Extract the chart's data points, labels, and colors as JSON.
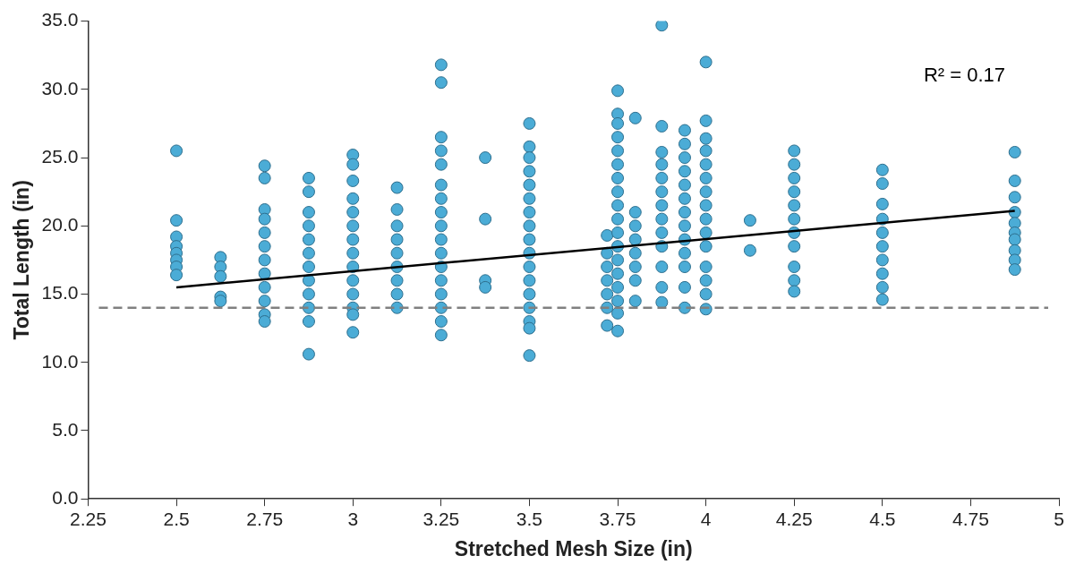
{
  "chart_data": {
    "type": "scatter",
    "xlabel": "Stretched Mesh Size (in)",
    "ylabel": "Total Length (in)",
    "xlim": [
      2.25,
      5
    ],
    "xticks": [
      2.25,
      2.5,
      2.75,
      3,
      3.25,
      3.5,
      3.75,
      4,
      4.25,
      4.5,
      4.75,
      5
    ],
    "ylim": [
      0,
      35
    ],
    "yticks": [
      {
        "value": 0,
        "label": "0.0"
      },
      {
        "value": 5,
        "label": "5.0"
      },
      {
        "value": 10,
        "label": "10.0"
      },
      {
        "value": 15,
        "label": "15.0"
      },
      {
        "value": 20,
        "label": "20.0"
      },
      {
        "value": 25,
        "label": "25.0"
      },
      {
        "value": 30,
        "label": "30.0"
      },
      {
        "value": 35,
        "label": "35.0"
      }
    ],
    "grid": false,
    "legend": false,
    "series": [
      {
        "marker": "circle",
        "color": "#4bacd6",
        "x": [
          2.5,
          2.5,
          2.5,
          2.5,
          2.5,
          2.5,
          2.5,
          2.5,
          2.625,
          2.625,
          2.625,
          2.625,
          2.625,
          2.75,
          2.75,
          2.75,
          2.75,
          2.75,
          2.75,
          2.75,
          2.75,
          2.75,
          2.75,
          2.75,
          2.75,
          2.875,
          2.875,
          2.875,
          2.875,
          2.875,
          2.875,
          2.875,
          2.875,
          2.875,
          2.875,
          2.875,
          2.875,
          3,
          3,
          3,
          3,
          3,
          3,
          3,
          3,
          3,
          3,
          3,
          3,
          3,
          3,
          3.125,
          3.125,
          3.125,
          3.125,
          3.125,
          3.125,
          3.125,
          3.125,
          3.125,
          3.25,
          3.25,
          3.25,
          3.25,
          3.25,
          3.25,
          3.25,
          3.25,
          3.25,
          3.25,
          3.25,
          3.25,
          3.25,
          3.25,
          3.25,
          3.25,
          3.25,
          3.375,
          3.375,
          3.375,
          3.375,
          3.5,
          3.5,
          3.5,
          3.5,
          3.5,
          3.5,
          3.5,
          3.5,
          3.5,
          3.5,
          3.5,
          3.5,
          3.5,
          3.5,
          3.5,
          3.5,
          3.5,
          3.72,
          3.72,
          3.72,
          3.72,
          3.72,
          3.72,
          3.72,
          3.75,
          3.75,
          3.75,
          3.75,
          3.75,
          3.75,
          3.75,
          3.75,
          3.75,
          3.75,
          3.75,
          3.75,
          3.75,
          3.75,
          3.75,
          3.75,
          3.75,
          3.75,
          3.8,
          3.8,
          3.8,
          3.8,
          3.8,
          3.8,
          3.8,
          3.8,
          3.875,
          3.875,
          3.875,
          3.875,
          3.875,
          3.875,
          3.875,
          3.875,
          3.875,
          3.875,
          3.875,
          3.875,
          3.875,
          3.94,
          3.94,
          3.94,
          3.94,
          3.94,
          3.94,
          3.94,
          3.94,
          3.94,
          3.94,
          3.94,
          3.94,
          3.94,
          4,
          4,
          4,
          4,
          4,
          4,
          4,
          4,
          4,
          4,
          4,
          4,
          4,
          4,
          4,
          4.125,
          4.125,
          4.25,
          4.25,
          4.25,
          4.25,
          4.25,
          4.25,
          4.25,
          4.25,
          4.25,
          4.25,
          4.25,
          4.5,
          4.5,
          4.5,
          4.5,
          4.5,
          4.5,
          4.5,
          4.5,
          4.5,
          4.5,
          4.875,
          4.875,
          4.875,
          4.875,
          4.875,
          4.875,
          4.875,
          4.875,
          4.875,
          4.875
        ],
        "values": [
          25.5,
          20.4,
          19.2,
          18.5,
          18,
          17.5,
          17,
          16.4,
          17.7,
          17,
          16.3,
          14.8,
          14.5,
          24.4,
          23.5,
          21.2,
          20.5,
          19.5,
          18.5,
          17.5,
          16.5,
          15.5,
          14.5,
          13.5,
          13,
          23.5,
          22.5,
          21,
          20,
          19,
          18,
          17,
          16,
          15,
          14,
          13,
          10.6,
          25.2,
          24.5,
          23.3,
          22,
          21,
          20,
          19,
          18,
          17,
          16,
          15,
          14,
          13.5,
          12.2,
          22.8,
          21.2,
          20,
          19,
          18,
          17,
          16,
          15,
          14,
          31.8,
          30.5,
          26.5,
          25.5,
          24.5,
          23,
          22,
          21,
          20,
          19,
          18,
          17,
          16,
          15,
          14,
          13,
          12,
          25,
          20.5,
          16,
          15.5,
          27.5,
          25.8,
          25,
          24,
          23,
          22,
          21,
          20,
          19,
          18,
          17,
          16,
          15,
          14,
          13,
          12.5,
          10.5,
          19.3,
          18,
          17,
          16,
          15,
          14,
          12.7,
          29.9,
          28.2,
          27.5,
          26.5,
          25.5,
          24.5,
          23.5,
          22.5,
          21.5,
          20.5,
          19.5,
          18.5,
          17.5,
          16.5,
          15.5,
          14.5,
          13.6,
          12.3,
          27.9,
          21,
          20,
          19,
          18,
          17,
          16,
          14.5,
          34.7,
          27.3,
          25.4,
          24.5,
          23.5,
          22.5,
          21.5,
          20.5,
          19.5,
          18.5,
          17,
          15.5,
          14.4,
          27,
          26,
          25,
          24,
          23,
          22,
          21,
          20,
          19,
          18,
          17,
          15.5,
          14,
          32,
          27.7,
          26.4,
          25.5,
          24.5,
          23.5,
          22.5,
          21.5,
          20.5,
          19.5,
          18.5,
          17,
          16,
          15,
          13.9,
          20.4,
          18.2,
          25.5,
          24.5,
          23.5,
          22.5,
          21.5,
          20.5,
          19.5,
          18.5,
          17,
          16,
          15.2,
          24.1,
          23.1,
          21.6,
          20.5,
          19.5,
          18.5,
          17.5,
          16.5,
          15.5,
          14.6,
          25.4,
          23.3,
          22.1,
          21,
          20.2,
          19.5,
          19,
          18.2,
          17.5,
          16.8
        ]
      },
      {
        "type": "line",
        "marker": "none",
        "color": "#000000",
        "x": [
          2.5,
          4.875
        ],
        "values": [
          15.5,
          21.1
        ]
      }
    ],
    "ref_lines": [
      {
        "axis": "y",
        "value": 14,
        "color": "#808080",
        "line_style": "dashed"
      }
    ],
    "annotations": [
      "R² = 0.17"
    ]
  }
}
